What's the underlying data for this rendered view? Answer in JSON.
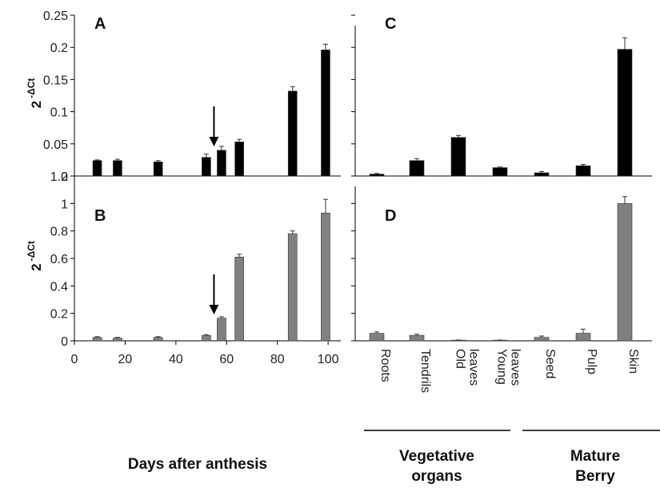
{
  "chart_data": [
    {
      "panel": "A",
      "type": "bar",
      "ylabel": "2 -ΔCt",
      "ylabel_base": "2",
      "ylabel_exp": "-ΔCt",
      "ylim": [
        0,
        0.25
      ],
      "yticks": [
        0,
        0.05,
        0.1,
        0.15,
        0.2,
        0.25
      ],
      "ytick_labels": [
        "0",
        "0.05",
        "0.1",
        "0.15",
        "0.2",
        "0.25"
      ],
      "xlim": [
        0,
        105
      ],
      "x": [
        9,
        17,
        33,
        52,
        58,
        65,
        86,
        99
      ],
      "values": [
        0.024,
        0.024,
        0.022,
        0.029,
        0.04,
        0.053,
        0.132,
        0.196
      ],
      "errors": [
        0.001,
        0.002,
        0.002,
        0.005,
        0.006,
        0.004,
        0.007,
        0.009
      ],
      "bar_color": "#000000",
      "arrow_at_x": 55
    },
    {
      "panel": "B",
      "type": "bar",
      "ylabel": "2 -ΔCt",
      "ylabel_base": "2",
      "ylabel_exp": "-ΔCt",
      "ylim": [
        0,
        1.2
      ],
      "yticks": [
        0,
        0.2,
        0.4,
        0.6,
        0.8,
        1,
        1.2
      ],
      "ytick_labels": [
        "0",
        "0.2",
        "0.4",
        "0.6",
        "0.8",
        "1",
        "1.2"
      ],
      "xlim": [
        0,
        105
      ],
      "xticks": [
        0,
        20,
        40,
        60,
        80,
        100
      ],
      "xtick_labels": [
        "0",
        "20",
        "40",
        "60",
        "80",
        "100"
      ],
      "xlabel": "Days after anthesis",
      "x": [
        9,
        17,
        33,
        52,
        58,
        65,
        86,
        99
      ],
      "values": [
        0.025,
        0.02,
        0.025,
        0.04,
        0.165,
        0.61,
        0.78,
        0.93
      ],
      "errors": [
        0.005,
        0.005,
        0.005,
        0.005,
        0.01,
        0.02,
        0.02,
        0.1
      ],
      "bar_color": "#808080",
      "arrow_at_x": 55
    },
    {
      "panel": "C",
      "type": "bar",
      "categories": [
        "Roots",
        "Tendrils",
        "Old leaves",
        "Young leaves",
        "Seed",
        "Pulp",
        "Skin"
      ],
      "ylim": [
        0,
        0.25
      ],
      "values": [
        0.003,
        0.024,
        0.06,
        0.013,
        0.005,
        0.016,
        0.197
      ],
      "errors": [
        0.001,
        0.003,
        0.003,
        0.001,
        0.002,
        0.002,
        0.018
      ],
      "bar_color": "#000000"
    },
    {
      "panel": "D",
      "type": "bar",
      "categories": [
        "Roots",
        "Tendrils",
        "Old leaves",
        "Young leaves",
        "Seed",
        "Pulp",
        "Skin"
      ],
      "ylim": [
        0,
        1.2
      ],
      "values": [
        0.055,
        0.04,
        0.005,
        0.005,
        0.025,
        0.055,
        1.0
      ],
      "errors": [
        0.01,
        0.008,
        0.001,
        0.001,
        0.01,
        0.03,
        0.05
      ],
      "bar_color": "#808080"
    }
  ],
  "tissue_labels": [
    {
      "lines": [
        "Roots"
      ]
    },
    {
      "lines": [
        "Tendrils"
      ]
    },
    {
      "lines": [
        "Old",
        "leaves"
      ]
    },
    {
      "lines": [
        "Young",
        "leaves"
      ]
    },
    {
      "lines": [
        "Seed"
      ]
    },
    {
      "lines": [
        "Pulp"
      ]
    },
    {
      "lines": [
        "Skin"
      ]
    }
  ],
  "group_labels": [
    {
      "lines": [
        "Vegetative",
        "organs"
      ]
    },
    {
      "lines": [
        "Mature",
        "Berry"
      ]
    }
  ]
}
